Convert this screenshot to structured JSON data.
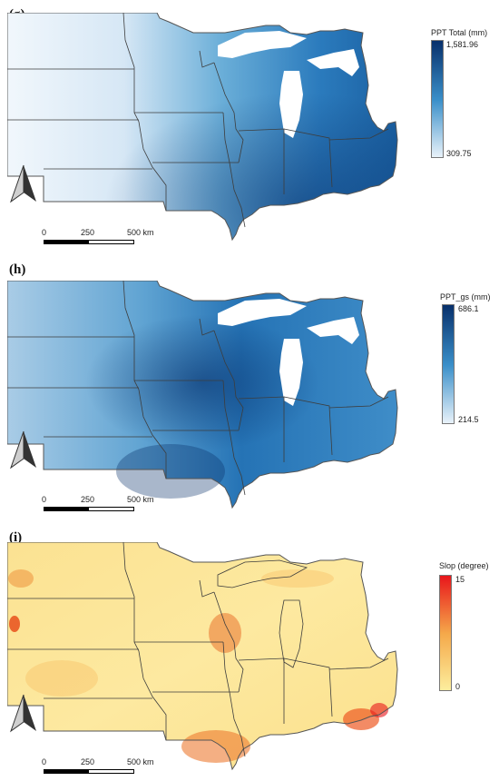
{
  "panels": [
    {
      "label": "(g)",
      "legend_title": "PPT Total (mm)",
      "legend_max": "1,581.96",
      "legend_min": "309.75",
      "colors": {
        "low": "#eef5fb",
        "mid": "#3a8fc9",
        "high": "#08306b"
      }
    },
    {
      "label": "(h)",
      "legend_title": "PPT_gs (mm)",
      "legend_max": "686.1",
      "legend_min": "214.5",
      "colors": {
        "low": "#eef5fb",
        "mid": "#3a8fc9",
        "high": "#08306b"
      }
    },
    {
      "label": "(i)",
      "legend_title": "Slop (degree)",
      "legend_max": "15",
      "legend_min": "0",
      "colors": {
        "low": "#fdf0a0",
        "mid": "#f5a94a",
        "high": "#e8161b"
      }
    }
  ],
  "scale_labels": {
    "zero": "0",
    "mid": "250",
    "end": "500 km"
  },
  "icons": {
    "north_arrow": "north-arrow-icon"
  }
}
